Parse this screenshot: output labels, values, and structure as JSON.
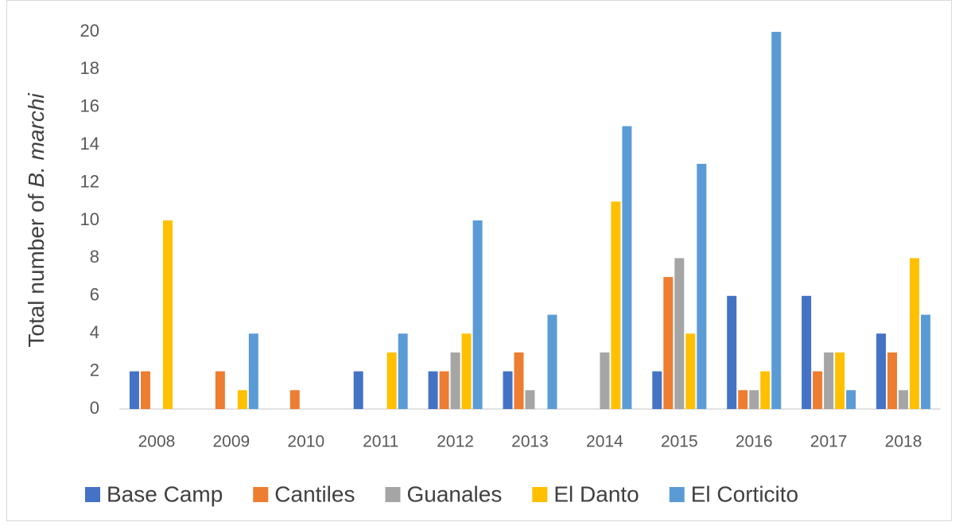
{
  "chart_data": {
    "type": "bar",
    "y_label_parts": [
      "Total number of",
      "B. marchi"
    ],
    "categories": [
      "2008",
      "2009",
      "2010",
      "2011",
      "2012",
      "2013",
      "2014",
      "2015",
      "2016",
      "2017",
      "2018"
    ],
    "series": [
      {
        "name": "Base Camp",
        "color": "#4472c4",
        "values": [
          2,
          0,
          0,
          2,
          2,
          2,
          0,
          2,
          6,
          6,
          4
        ]
      },
      {
        "name": "Cantiles",
        "color": "#ed7d31",
        "values": [
          2,
          2,
          1,
          0,
          2,
          3,
          0,
          7,
          1,
          2,
          3
        ]
      },
      {
        "name": "Guanales",
        "color": "#a5a5a5",
        "values": [
          0,
          0,
          0,
          0,
          3,
          1,
          3,
          8,
          1,
          3,
          1
        ]
      },
      {
        "name": "El Danto",
        "color": "#ffc000",
        "values": [
          10,
          1,
          0,
          3,
          4,
          0,
          11,
          4,
          2,
          3,
          8
        ]
      },
      {
        "name": "El Corticito",
        "color": "#5b9bd5",
        "values": [
          0,
          4,
          0,
          4,
          10,
          5,
          15,
          13,
          20,
          1,
          5
        ]
      }
    ],
    "ylim": [
      0,
      20
    ],
    "yticks": [
      0,
      2,
      4,
      6,
      8,
      10,
      12,
      14,
      16,
      18,
      20
    ],
    "grid": false,
    "legend": "bottom"
  }
}
